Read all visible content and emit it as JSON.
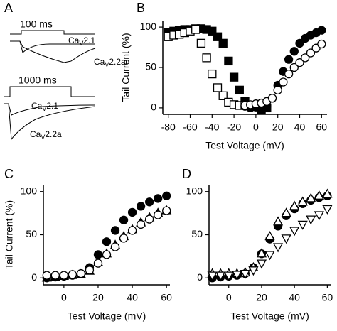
{
  "panel_a": {
    "label": "A",
    "scale_top": "100 ms",
    "scale_bottom": "1000 ms",
    "trace_labels": [
      {
        "main": "Ca",
        "sub": "V",
        "rest": "2.1"
      },
      {
        "main": "Ca",
        "sub": "V",
        "rest": "2.2a"
      },
      {
        "main": "Ca",
        "sub": "V",
        "rest": "2.1"
      },
      {
        "main": "Ca",
        "sub": "V",
        "rest": "2.2a"
      }
    ]
  },
  "chart_data": [
    {
      "type": "scatter",
      "panel_label": "B",
      "x_label": "Test Voltage (mV)",
      "y_label": "Tail Current (%)",
      "xlim": [
        -85,
        65
      ],
      "xticks": [
        -80,
        -60,
        -40,
        -20,
        0,
        20,
        40,
        60
      ],
      "ylim": [
        -8,
        108
      ],
      "yticks": [
        0,
        50,
        100
      ],
      "series": [
        {
          "marker": "square",
          "filled": true,
          "color": "#000000",
          "x": [
            -80,
            -75,
            -70,
            -65,
            -60,
            -55,
            -50,
            -45,
            -40,
            -35,
            -30,
            -25,
            -20,
            -15,
            -10,
            -5,
            0,
            5,
            10
          ],
          "values": [
            93,
            95,
            96,
            97,
            97,
            98,
            98,
            97,
            95,
            88,
            80,
            58,
            38,
            22,
            8,
            3,
            2,
            -3,
            0
          ]
        },
        {
          "marker": "square",
          "filled": false,
          "color": "#000000",
          "x": [
            -80,
            -75,
            -70,
            -65,
            -60,
            -55,
            -50,
            -45,
            -40,
            -35,
            -30,
            -25,
            -20,
            -15,
            -10,
            -5,
            0,
            5
          ],
          "values": [
            88,
            90,
            91,
            93,
            95,
            97,
            80,
            62,
            42,
            25,
            15,
            7,
            4,
            3,
            3,
            3,
            3,
            3
          ]
        },
        {
          "marker": "circle",
          "filled": true,
          "color": "#000000",
          "x": [
            -10,
            -5,
            0,
            5,
            10,
            15,
            20,
            25,
            30,
            35,
            40,
            45,
            50,
            55,
            60
          ],
          "values": [
            2,
            0,
            1,
            0,
            2,
            12,
            28,
            45,
            60,
            70,
            80,
            86,
            90,
            93,
            96
          ]
        },
        {
          "marker": "circle",
          "filled": false,
          "color": "#000000",
          "x": [
            -10,
            -5,
            0,
            5,
            10,
            15,
            20,
            25,
            30,
            35,
            40,
            45,
            50,
            55,
            60
          ],
          "values": [
            3,
            4,
            5,
            6,
            8,
            12,
            22,
            32,
            42,
            50,
            56,
            62,
            68,
            74,
            79
          ]
        }
      ]
    },
    {
      "type": "scatter",
      "panel_label": "C",
      "x_label": "Test Voltage (mV)",
      "y_label": "Tail Current (%)",
      "xlim": [
        -12,
        62
      ],
      "xticks": [
        0,
        20,
        40,
        60
      ],
      "ylim": [
        -8,
        108
      ],
      "yticks": [
        0,
        50,
        100
      ],
      "series": [
        {
          "marker": "circle",
          "filled": true,
          "color": "#000000",
          "x": [
            -10,
            -5,
            0,
            5,
            10,
            15,
            20,
            25,
            30,
            35,
            40,
            45,
            50,
            55,
            60
          ],
          "values": [
            0,
            1,
            2,
            3,
            5,
            12,
            27,
            42,
            55,
            67,
            76,
            83,
            88,
            92,
            95
          ]
        },
        {
          "marker": "triangle",
          "filled": true,
          "color": "#000000",
          "x": [
            -10,
            -5,
            0,
            5,
            10,
            15,
            20,
            25,
            30,
            35,
            40,
            45,
            50,
            55,
            60
          ],
          "values": [
            0,
            1,
            2,
            3,
            4,
            8,
            18,
            28,
            38,
            48,
            56,
            64,
            70,
            75,
            78
          ]
        },
        {
          "marker": "circle",
          "filled": false,
          "color": "#000000",
          "x": [
            -10,
            -5,
            0,
            5,
            10,
            15,
            20,
            25,
            30,
            35,
            40,
            45,
            50,
            55,
            60
          ],
          "values": [
            3,
            3,
            3,
            4,
            5,
            9,
            17,
            27,
            36,
            46,
            55,
            62,
            68,
            73,
            78
          ]
        }
      ]
    },
    {
      "type": "scatter",
      "panel_label": "D",
      "x_label": "Test Voltage (mV)",
      "xlim": [
        -12,
        62
      ],
      "xticks": [
        0,
        20,
        40,
        60
      ],
      "ylim": [
        -8,
        108
      ],
      "yticks": [
        0,
        50,
        100
      ],
      "series": [
        {
          "marker": "circle",
          "filled": true,
          "color": "#000000",
          "x": [
            -10,
            -5,
            0,
            5,
            10,
            15,
            20,
            25,
            30,
            35,
            40,
            45,
            50,
            55,
            60
          ],
          "values": [
            0,
            1,
            2,
            3,
            5,
            12,
            28,
            45,
            60,
            72,
            80,
            86,
            90,
            93,
            95
          ]
        },
        {
          "marker": "triangle",
          "filled": false,
          "color": "#000000",
          "x": [
            -10,
            -5,
            0,
            5,
            10,
            15,
            20,
            25,
            30,
            35,
            40,
            45,
            50,
            55,
            60
          ],
          "values": [
            5,
            5,
            5,
            5,
            6,
            12,
            28,
            48,
            65,
            75,
            83,
            88,
            92,
            95,
            97
          ]
        },
        {
          "marker": "triangle-down",
          "filled": false,
          "color": "#000000",
          "x": [
            -10,
            -5,
            0,
            5,
            10,
            15,
            20,
            25,
            30,
            35,
            40,
            45,
            50,
            55,
            60
          ],
          "values": [
            3,
            3,
            3,
            4,
            5,
            9,
            17,
            27,
            36,
            46,
            55,
            62,
            68,
            73,
            80
          ]
        }
      ]
    }
  ]
}
